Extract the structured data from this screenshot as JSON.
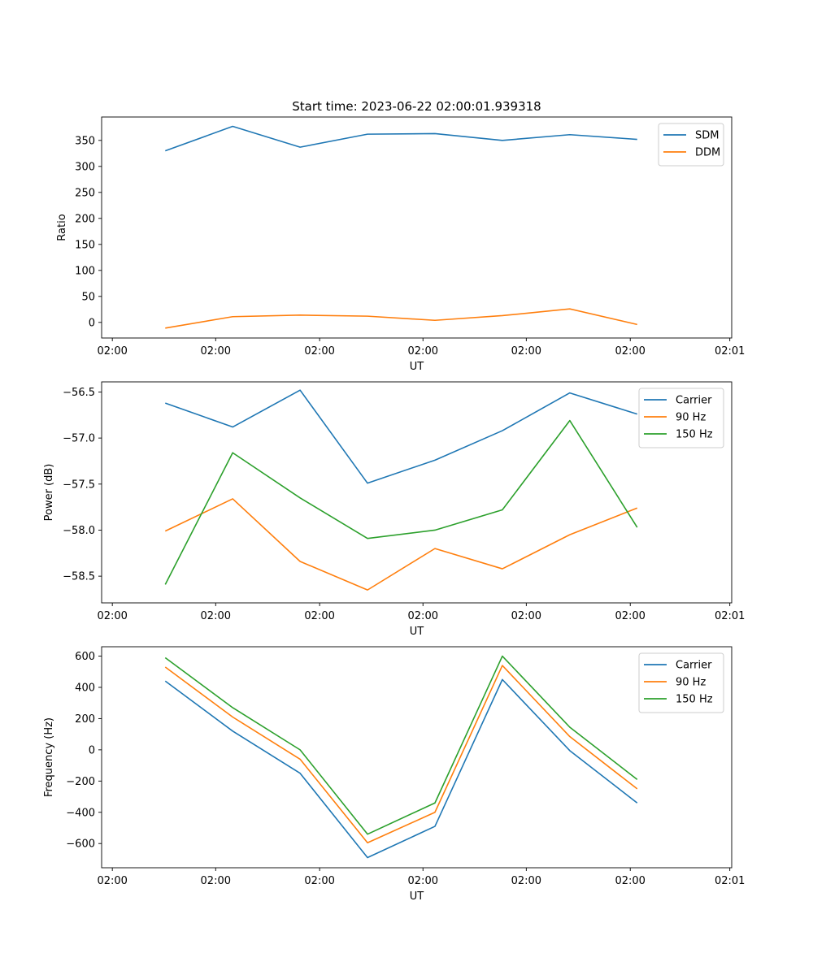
{
  "chart_data": [
    {
      "type": "line",
      "title": "Start time: 2023-06-22 02:00:01.939318",
      "xlabel": "UT",
      "ylabel": "Ratio",
      "x_tick_labels": [
        "02:00",
        "02:00",
        "02:00",
        "02:00",
        "02:00",
        "02:00",
        "02:01"
      ],
      "ylim": [
        -30,
        395
      ],
      "yticks": [
        0,
        50,
        100,
        150,
        200,
        250,
        300,
        350
      ],
      "grid": false,
      "legend": "top-right",
      "series": [
        {
          "name": "SDM",
          "color": "#1f77b4",
          "values": [
            330,
            377,
            337,
            362,
            363,
            350,
            361,
            352
          ]
        },
        {
          "name": "DDM",
          "color": "#ff7f0e",
          "values": [
            -11,
            11,
            14,
            12,
            4,
            13,
            26,
            -4
          ]
        }
      ]
    },
    {
      "type": "line",
      "title": "",
      "xlabel": "UT",
      "ylabel": "Power (dB)",
      "x_tick_labels": [
        "02:00",
        "02:00",
        "02:00",
        "02:00",
        "02:00",
        "02:00",
        "02:01"
      ],
      "ylim": [
        -58.79,
        -56.39
      ],
      "yticks": [
        -58.5,
        -58.0,
        -57.5,
        -57.0,
        -56.5
      ],
      "ytick_labels": [
        "−58.5",
        "−58.0",
        "−57.5",
        "−57.0",
        "−56.5"
      ],
      "grid": false,
      "legend": "top-right",
      "series": [
        {
          "name": "Carrier",
          "color": "#1f77b4",
          "values": [
            -56.62,
            -56.88,
            -56.48,
            -57.49,
            -57.24,
            -56.92,
            -56.51,
            -56.74
          ]
        },
        {
          "name": "90 Hz",
          "color": "#ff7f0e",
          "values": [
            -58.01,
            -57.66,
            -58.34,
            -58.65,
            -58.2,
            -58.42,
            -58.05,
            -57.76
          ]
        },
        {
          "name": "150 Hz",
          "color": "#2ca02c",
          "values": [
            -58.59,
            -57.16,
            -57.65,
            -58.09,
            -58.0,
            -57.78,
            -56.81,
            -57.97
          ]
        }
      ]
    },
    {
      "type": "line",
      "title": "",
      "xlabel": "UT",
      "ylabel": "Frequency (Hz)",
      "x_tick_labels": [
        "02:00",
        "02:00",
        "02:00",
        "02:00",
        "02:00",
        "02:00",
        "02:01"
      ],
      "ylim": [
        -755,
        660
      ],
      "yticks": [
        -600,
        -400,
        -200,
        0,
        200,
        400,
        600
      ],
      "ytick_labels": [
        "−600",
        "−400",
        "−200",
        "0",
        "200",
        "400",
        "600"
      ],
      "grid": false,
      "legend": "top-right",
      "series": [
        {
          "name": "Carrier",
          "color": "#1f77b4",
          "values": [
            440,
            120,
            -150,
            -690,
            -490,
            450,
            -5,
            -340
          ]
        },
        {
          "name": "90 Hz",
          "color": "#ff7f0e",
          "values": [
            530,
            210,
            -60,
            -595,
            -400,
            540,
            85,
            -250
          ]
        },
        {
          "name": "150 Hz",
          "color": "#2ca02c",
          "values": [
            590,
            270,
            0,
            -540,
            -340,
            600,
            145,
            -190
          ]
        }
      ]
    }
  ]
}
